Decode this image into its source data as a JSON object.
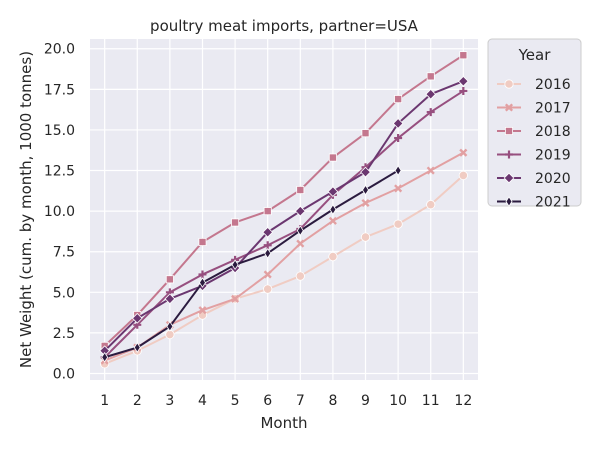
{
  "chart_data": {
    "type": "line",
    "title": "poultry meat imports, partner=USA",
    "xlabel": "Month",
    "ylabel": "Net Weight (cum. by month, 1000 tonnes)",
    "x_ticks": [
      "1",
      "2",
      "3",
      "4",
      "5",
      "6",
      "7",
      "8",
      "9",
      "10",
      "11",
      "12"
    ],
    "y_ticks": [
      "0.0",
      "2.5",
      "5.0",
      "7.5",
      "10.0",
      "12.5",
      "15.0",
      "17.5",
      "20.0"
    ],
    "xlim": [
      0.55,
      12.45
    ],
    "ylim": [
      -0.4,
      20.6
    ],
    "grid": true,
    "legend": {
      "title": "Year",
      "placement": "outside right"
    },
    "series": [
      {
        "name": "2016",
        "color": "#f0ccc3",
        "marker": "circle",
        "x": [
          1,
          2,
          3,
          4,
          5,
          6,
          7,
          8,
          9,
          10,
          11,
          12
        ],
        "y": [
          0.6,
          1.4,
          2.4,
          3.6,
          4.6,
          5.2,
          6.0,
          7.2,
          8.4,
          9.2,
          10.4,
          12.2
        ]
      },
      {
        "name": "2017",
        "color": "#e2a0a2",
        "marker": "x",
        "x": [
          1,
          2,
          3,
          4,
          5,
          6,
          7,
          8,
          9,
          10,
          11,
          12
        ],
        "y": [
          0.8,
          1.6,
          3.0,
          3.9,
          4.6,
          6.1,
          8.0,
          9.4,
          10.5,
          11.4,
          12.5,
          13.6
        ]
      },
      {
        "name": "2018",
        "color": "#c4778e",
        "marker": "square",
        "x": [
          1,
          2,
          3,
          4,
          5,
          6,
          7,
          8,
          9,
          10,
          11,
          12
        ],
        "y": [
          1.7,
          3.6,
          5.8,
          8.1,
          9.3,
          10.0,
          11.3,
          13.3,
          14.8,
          16.9,
          18.3,
          19.6
        ]
      },
      {
        "name": "2019",
        "color": "#974f7f",
        "marker": "plus",
        "x": [
          1,
          2,
          3,
          4,
          5,
          6,
          7,
          8,
          9,
          10,
          11,
          12
        ],
        "y": [
          1.0,
          3.0,
          5.0,
          6.1,
          7.0,
          7.9,
          8.9,
          11.0,
          12.7,
          14.5,
          16.1,
          17.4
        ]
      },
      {
        "name": "2020",
        "color": "#6b3770",
        "marker": "diamond",
        "x": [
          1,
          2,
          3,
          4,
          5,
          6,
          7,
          8,
          9,
          10,
          11,
          12
        ],
        "y": [
          1.4,
          3.4,
          4.6,
          5.4,
          6.5,
          8.7,
          10.0,
          11.2,
          12.4,
          15.4,
          17.2,
          18.0
        ]
      },
      {
        "name": "2021",
        "color": "#2b1b3f",
        "marker": "thin-diamond",
        "x": [
          1,
          2,
          3,
          4,
          5,
          6,
          7,
          8,
          9,
          10
        ],
        "y": [
          1.0,
          1.6,
          2.9,
          5.6,
          6.7,
          7.4,
          8.8,
          10.1,
          11.3,
          12.5
        ]
      }
    ]
  }
}
